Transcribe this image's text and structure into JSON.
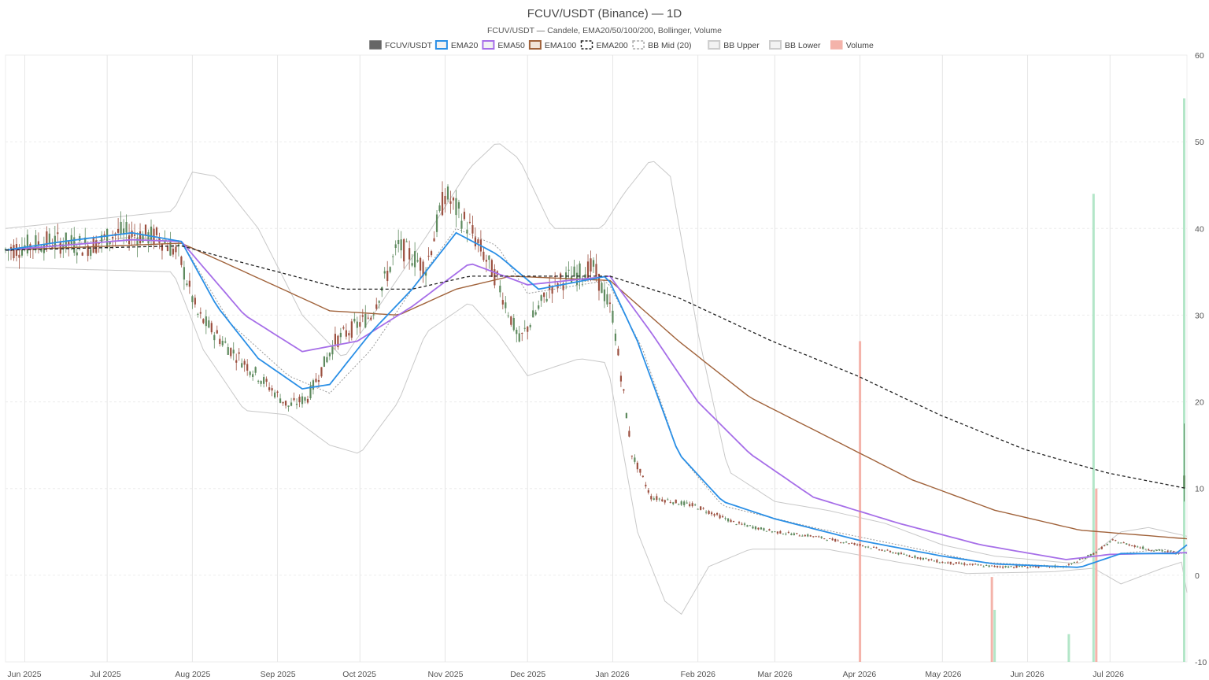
{
  "chart_data": {
    "type": "candlestick",
    "title": "FCUV/USDT (Binance) — 1D",
    "subtitle": "FCUV/USDT — Candele, EMA20/50/100/200, Bollinger, Volume",
    "legend": [
      {
        "label": "FCUV/USDT",
        "color": "#666666",
        "style": "solid"
      },
      {
        "label": "EMA20",
        "color": "#2a8fe6",
        "style": "line"
      },
      {
        "label": "EMA50",
        "color": "#a66ee8",
        "style": "line"
      },
      {
        "label": "EMA100",
        "color": "#a0623a",
        "style": "line"
      },
      {
        "label": "EMA200",
        "color": "#222222",
        "style": "dashed"
      },
      {
        "label": "BB Mid (20)",
        "color": "#aaaaaa",
        "style": "dashed"
      },
      {
        "label": "BB Upper",
        "color": "#cccccc",
        "style": "line"
      },
      {
        "label": "BB Lower",
        "color": "#cccccc",
        "style": "line"
      },
      {
        "label": "Volume",
        "color": "#f4b3aa",
        "style": "solid"
      }
    ],
    "legend_position": "top-center",
    "x_ticks": [
      "Jun 2025",
      "Jul 2025",
      "Aug 2025",
      "Sep 2025",
      "Oct 2025",
      "Nov 2025",
      "Dec 2025",
      "Jan 2026",
      "Feb 2026",
      "Mar 2026",
      "Apr 2026",
      "May 2026",
      "Jun 2026",
      "Jul 2026"
    ],
    "x_range": [
      "2025-05-25",
      "2026-07-29"
    ],
    "y_axis_position": "right",
    "ylim": [
      -10,
      60
    ],
    "y_ticks": [
      -10,
      0,
      10,
      20,
      30,
      40,
      50,
      60
    ],
    "grid": true,
    "colors": {
      "up": "#5e8a5e",
      "down": "#9c5040",
      "vol_up": "#b3e6c8",
      "vol_down": "#f4b3aa"
    },
    "price_keypoints": [
      [
        "2025-05-25",
        37.5
      ],
      [
        "2025-06-10",
        38.5
      ],
      [
        "2025-06-25",
        38.0
      ],
      [
        "2025-07-05",
        39.5
      ],
      [
        "2025-07-20",
        39.0
      ],
      [
        "2025-07-27",
        37.0
      ],
      [
        "2025-08-03",
        30.0
      ],
      [
        "2025-08-15",
        26.0
      ],
      [
        "2025-08-25",
        23.0
      ],
      [
        "2025-09-05",
        19.5
      ],
      [
        "2025-09-12",
        20.5
      ],
      [
        "2025-09-22",
        27.0
      ],
      [
        "2025-10-05",
        30.0
      ],
      [
        "2025-10-15",
        38.0
      ],
      [
        "2025-10-25",
        35.5
      ],
      [
        "2025-11-01",
        44.0
      ],
      [
        "2025-11-10",
        40.0
      ],
      [
        "2025-11-20",
        34.0
      ],
      [
        "2025-11-28",
        27.0
      ],
      [
        "2025-12-10",
        33.5
      ],
      [
        "2025-12-25",
        35.5
      ],
      [
        "2026-01-01",
        30.0
      ],
      [
        "2026-01-08",
        14.0
      ],
      [
        "2026-01-15",
        9.0
      ],
      [
        "2026-01-31",
        8.0
      ],
      [
        "2026-02-15",
        6.0
      ],
      [
        "2026-03-01",
        5.0
      ],
      [
        "2026-03-15",
        4.5
      ],
      [
        "2026-04-01",
        3.5
      ],
      [
        "2026-04-15",
        2.5
      ],
      [
        "2026-05-01",
        1.5
      ],
      [
        "2026-05-20",
        1.0
      ],
      [
        "2026-06-15",
        1.0
      ],
      [
        "2026-06-25",
        2.5
      ],
      [
        "2026-07-02",
        4.0
      ],
      [
        "2026-07-15",
        3.0
      ],
      [
        "2026-07-27",
        2.5
      ],
      [
        "2026-07-28",
        10.5
      ]
    ],
    "ema20": [
      [
        "2025-05-25",
        37.5
      ],
      [
        "2025-06-15",
        38.5
      ],
      [
        "2025-07-10",
        39.5
      ],
      [
        "2025-07-28",
        38.5
      ],
      [
        "2025-08-10",
        31.0
      ],
      [
        "2025-08-25",
        25.0
      ],
      [
        "2025-09-10",
        21.5
      ],
      [
        "2025-09-20",
        22.0
      ],
      [
        "2025-10-05",
        28.0
      ],
      [
        "2025-10-20",
        33.0
      ],
      [
        "2025-11-05",
        39.5
      ],
      [
        "2025-11-20",
        37.0
      ],
      [
        "2025-12-05",
        33.0
      ],
      [
        "2025-12-30",
        34.5
      ],
      [
        "2026-01-10",
        27.0
      ],
      [
        "2026-01-25",
        14.0
      ],
      [
        "2026-02-10",
        8.5
      ],
      [
        "2026-03-01",
        6.5
      ],
      [
        "2026-04-01",
        4.0
      ],
      [
        "2026-05-01",
        2.2
      ],
      [
        "2026-05-20",
        1.3
      ],
      [
        "2026-06-20",
        0.9
      ],
      [
        "2026-07-05",
        2.5
      ],
      [
        "2026-07-25",
        2.5
      ],
      [
        "2026-07-29",
        3.5
      ]
    ],
    "ema50": [
      [
        "2025-05-25",
        37.5
      ],
      [
        "2025-07-10",
        38.7
      ],
      [
        "2025-07-28",
        38.5
      ],
      [
        "2025-08-20",
        30.0
      ],
      [
        "2025-09-10",
        25.8
      ],
      [
        "2025-09-30",
        27.0
      ],
      [
        "2025-10-20",
        31.0
      ],
      [
        "2025-11-10",
        36.0
      ],
      [
        "2025-12-01",
        33.5
      ],
      [
        "2025-12-31",
        34.5
      ],
      [
        "2026-01-15",
        28.0
      ],
      [
        "2026-02-01",
        20.0
      ],
      [
        "2026-02-20",
        14.0
      ],
      [
        "2026-03-15",
        9.0
      ],
      [
        "2026-04-15",
        6.0
      ],
      [
        "2026-05-15",
        3.5
      ],
      [
        "2026-06-15",
        1.8
      ],
      [
        "2026-07-01",
        2.4
      ],
      [
        "2026-07-29",
        2.6
      ]
    ],
    "ema100": [
      [
        "2025-05-25",
        37.5
      ],
      [
        "2025-07-28",
        38.3
      ],
      [
        "2025-08-20",
        35.0
      ],
      [
        "2025-09-20",
        30.5
      ],
      [
        "2025-10-15",
        30.0
      ],
      [
        "2025-11-05",
        33.0
      ],
      [
        "2025-11-25",
        34.5
      ],
      [
        "2025-12-31",
        34.0
      ],
      [
        "2026-01-25",
        27.0
      ],
      [
        "2026-02-20",
        20.5
      ],
      [
        "2026-03-20",
        16.0
      ],
      [
        "2026-04-20",
        11.0
      ],
      [
        "2026-05-20",
        7.5
      ],
      [
        "2026-06-20",
        5.2
      ],
      [
        "2026-07-29",
        4.2
      ]
    ],
    "ema200": [
      [
        "2025-05-25",
        37.5
      ],
      [
        "2025-07-28",
        38.0
      ],
      [
        "2025-08-20",
        36.0
      ],
      [
        "2025-09-25",
        33.0
      ],
      [
        "2025-10-20",
        33.0
      ],
      [
        "2025-11-10",
        34.5
      ],
      [
        "2025-12-31",
        34.5
      ],
      [
        "2026-01-25",
        32.0
      ],
      [
        "2026-02-28",
        27.0
      ],
      [
        "2026-03-31",
        23.0
      ],
      [
        "2026-04-30",
        18.5
      ],
      [
        "2026-05-31",
        14.5
      ],
      [
        "2026-06-30",
        11.8
      ],
      [
        "2026-07-29",
        10.0
      ]
    ],
    "bb_mid": [
      [
        "2025-05-25",
        37.5
      ],
      [
        "2025-07-10",
        39.0
      ],
      [
        "2025-07-28",
        38.5
      ],
      [
        "2025-08-15",
        29.0
      ],
      [
        "2025-09-05",
        23.0
      ],
      [
        "2025-09-20",
        21.0
      ],
      [
        "2025-10-05",
        26.0
      ],
      [
        "2025-10-20",
        33.0
      ],
      [
        "2025-11-05",
        40.0
      ],
      [
        "2025-11-20",
        38.0
      ],
      [
        "2025-12-01",
        32.5
      ],
      [
        "2025-12-30",
        34.0
      ],
      [
        "2026-01-12",
        26.0
      ],
      [
        "2026-01-25",
        14.0
      ],
      [
        "2026-02-10",
        8.0
      ],
      [
        "2026-03-15",
        5.5
      ],
      [
        "2026-04-15",
        3.5
      ],
      [
        "2026-05-15",
        1.5
      ],
      [
        "2026-06-20",
        0.9
      ],
      [
        "2026-07-05",
        2.5
      ],
      [
        "2026-07-20",
        3.0
      ],
      [
        "2026-07-29",
        2.5
      ]
    ],
    "bb_upper": [
      [
        "2025-05-25",
        40.0
      ],
      [
        "2025-07-25",
        42.0
      ],
      [
        "2025-08-01",
        46.5
      ],
      [
        "2025-08-10",
        46.0
      ],
      [
        "2025-08-25",
        40.0
      ],
      [
        "2025-09-10",
        30.0
      ],
      [
        "2025-09-25",
        25.0
      ],
      [
        "2025-10-10",
        32.0
      ],
      [
        "2025-10-25",
        39.0
      ],
      [
        "2025-11-10",
        47.0
      ],
      [
        "2025-11-20",
        50.0
      ],
      [
        "2025-11-28",
        48.0
      ],
      [
        "2025-12-10",
        40.0
      ],
      [
        "2025-12-28",
        40.0
      ],
      [
        "2026-01-05",
        44.0
      ],
      [
        "2026-01-15",
        48.0
      ],
      [
        "2026-01-22",
        46.0
      ],
      [
        "2026-02-01",
        28.0
      ],
      [
        "2026-02-12",
        12.0
      ],
      [
        "2026-03-01",
        8.5
      ],
      [
        "2026-03-20",
        7.5
      ],
      [
        "2026-04-10",
        6.0
      ],
      [
        "2026-05-01",
        3.5
      ],
      [
        "2026-05-20",
        2.2
      ],
      [
        "2026-06-20",
        1.3
      ],
      [
        "2026-07-05",
        5.0
      ],
      [
        "2026-07-15",
        5.5
      ],
      [
        "2026-07-29",
        4.5
      ]
    ],
    "bb_lower": [
      [
        "2025-05-25",
        35.5
      ],
      [
        "2025-07-25",
        35.0
      ],
      [
        "2025-08-05",
        26.0
      ],
      [
        "2025-08-20",
        19.0
      ],
      [
        "2025-09-05",
        18.5
      ],
      [
        "2025-09-20",
        15.0
      ],
      [
        "2025-10-01",
        14.0
      ],
      [
        "2025-10-15",
        20.0
      ],
      [
        "2025-10-25",
        28.0
      ],
      [
        "2025-11-10",
        31.5
      ],
      [
        "2025-11-20",
        28.0
      ],
      [
        "2025-12-01",
        23.0
      ],
      [
        "2025-12-20",
        25.0
      ],
      [
        "2025-12-30",
        24.5
      ],
      [
        "2026-01-10",
        5.0
      ],
      [
        "2026-01-20",
        -3.0
      ],
      [
        "2026-01-26",
        -4.5
      ],
      [
        "2026-02-05",
        1.0
      ],
      [
        "2026-02-20",
        3.0
      ],
      [
        "2026-03-20",
        3.0
      ],
      [
        "2026-04-15",
        1.5
      ],
      [
        "2026-05-10",
        0.2
      ],
      [
        "2026-06-10",
        0.4
      ],
      [
        "2026-06-25",
        0.8
      ],
      [
        "2026-07-05",
        -1.0
      ],
      [
        "2026-07-20",
        0.8
      ],
      [
        "2026-07-27",
        1.5
      ],
      [
        "2026-07-29",
        -2.0
      ]
    ],
    "volume_spikes": [
      {
        "date": "2026-04-01",
        "value": 27.0,
        "up": false
      },
      {
        "date": "2026-05-19",
        "value": -0.2,
        "up": false
      },
      {
        "date": "2026-05-20",
        "value": -4.0,
        "up": true
      },
      {
        "date": "2026-06-16",
        "value": -6.8,
        "up": true
      },
      {
        "date": "2026-06-25",
        "value": 44.0,
        "up": true
      },
      {
        "date": "2026-06-26",
        "value": 10.0,
        "up": false
      },
      {
        "date": "2026-07-28",
        "value": 55.0,
        "up": true
      }
    ],
    "last_candle": {
      "date": "2026-07-28",
      "open": 10.0,
      "high": 17.5,
      "low": 8.5,
      "close": 11.5
    }
  }
}
